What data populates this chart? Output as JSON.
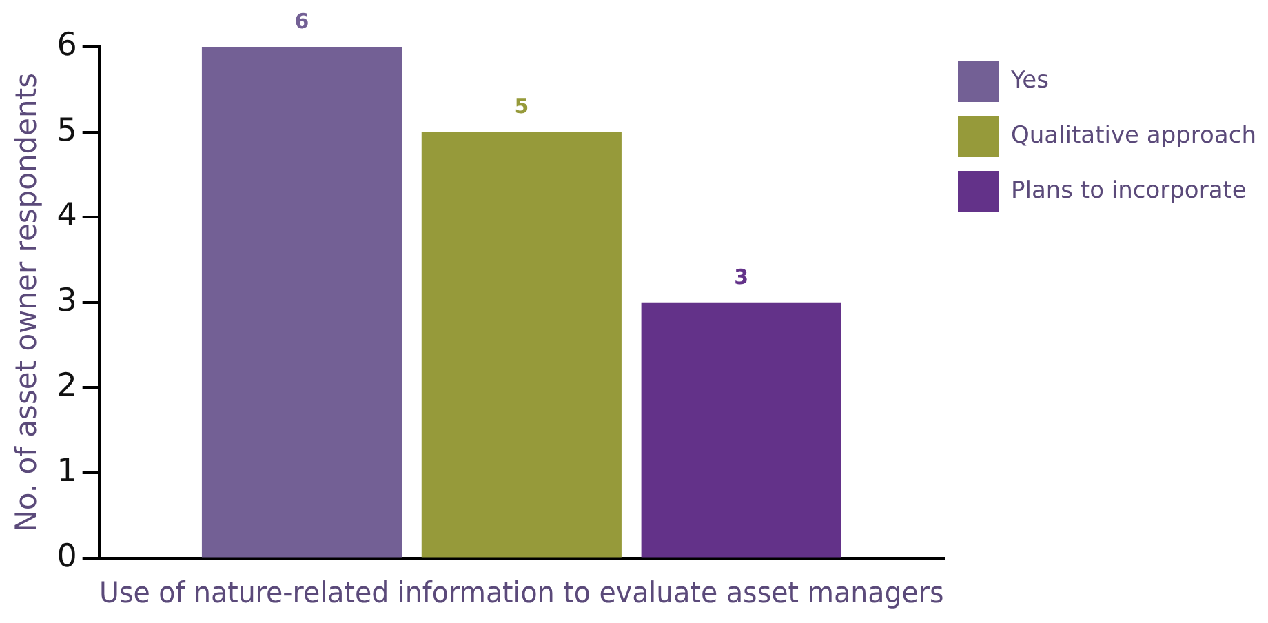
{
  "chart_data": {
    "type": "bar",
    "xlabel": "Use of nature-related information to evaluate asset managers",
    "ylabel": "No. of asset owner respondents",
    "categories": [
      null
    ],
    "series": [
      {
        "name": "Yes",
        "color": "#736095",
        "values": [
          6
        ]
      },
      {
        "name": "Qualitative approach",
        "color": "#969a3a",
        "values": [
          5
        ]
      },
      {
        "name": "Plans to incorporate",
        "color": "#633289",
        "values": [
          3
        ]
      }
    ],
    "ylim": [
      0,
      6
    ],
    "yticks": [
      0,
      1,
      2,
      3,
      4,
      5,
      6
    ],
    "grid": false,
    "legend": "top right",
    "tick_labels": "y",
    "data_labels": true
  }
}
